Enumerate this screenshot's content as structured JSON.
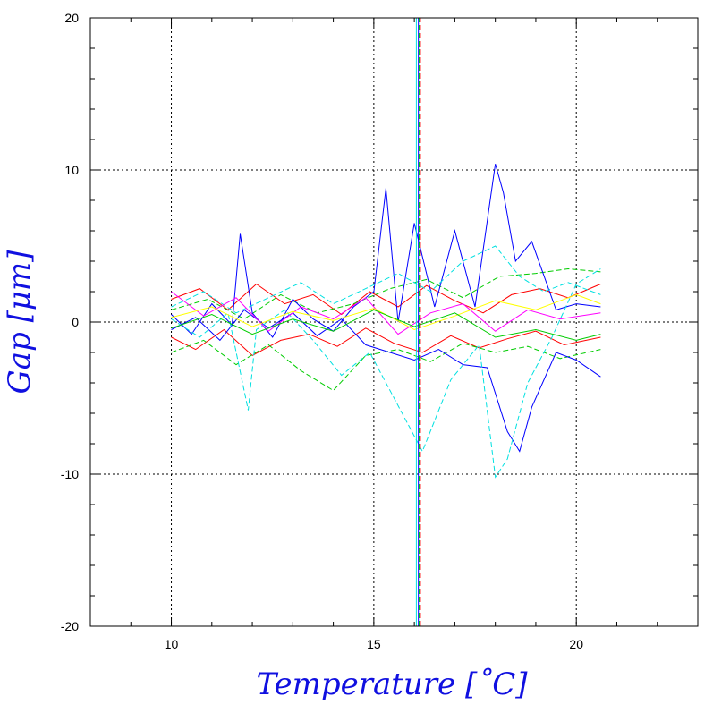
{
  "chart_data": {
    "type": "line",
    "title": "",
    "xlabel": "Temperature [˚C]",
    "ylabel": "Gap [μm]",
    "xlim": [
      8,
      23
    ],
    "ylim": [
      -20,
      20
    ],
    "x_ticks": [
      10,
      15,
      20
    ],
    "y_ticks": [
      -20,
      -10,
      0,
      10,
      20
    ],
    "x_tick_labels": [
      "10",
      "15",
      "20"
    ],
    "y_tick_labels": [
      "-20",
      "-10",
      "0",
      "10",
      "20"
    ],
    "grid": true,
    "grid_style": "dotted",
    "legend": "none",
    "series_colors": [
      "#ff0000",
      "#00cc00",
      "#0000ff",
      "#00e0e0",
      "#ff00ff",
      "#ffff00"
    ],
    "series": [
      {
        "color": "#ff0000",
        "dash": "solid",
        "x": [
          10.0,
          10.7,
          11.4,
          12.1,
          12.8,
          13.5,
          14.2,
          14.9,
          15.6,
          16.3,
          17.0,
          17.7,
          18.4,
          19.1,
          19.8,
          20.6
        ],
        "y": [
          1.5,
          2.2,
          0.8,
          2.5,
          1.2,
          1.8,
          0.5,
          2.0,
          1.0,
          2.4,
          1.4,
          0.6,
          1.8,
          2.2,
          1.6,
          2.5
        ]
      },
      {
        "color": "#ff0000",
        "dash": "solid",
        "x": [
          10.0,
          10.6,
          11.3,
          12.0,
          12.7,
          13.4,
          14.1,
          14.8,
          15.5,
          16.2,
          16.9,
          17.6,
          18.3,
          19.0,
          19.7,
          20.6
        ],
        "y": [
          -1.0,
          -1.8,
          -0.5,
          -2.2,
          -1.2,
          -0.8,
          -1.6,
          -0.4,
          -1.4,
          -2.0,
          -0.9,
          -1.7,
          -1.1,
          -0.6,
          -1.5,
          -1.0
        ]
      },
      {
        "color": "#00cc00",
        "dash": "dashed",
        "x": [
          10.0,
          10.8,
          11.6,
          12.4,
          13.2,
          14.0,
          14.8,
          15.6,
          16.4,
          17.2,
          18.0,
          18.8,
          19.6,
          20.6
        ],
        "y": [
          -2.0,
          -1.2,
          -2.8,
          -1.5,
          -3.2,
          -4.5,
          -2.2,
          -1.8,
          -2.6,
          -1.4,
          -2.0,
          -1.6,
          -2.4,
          -1.8
        ]
      },
      {
        "color": "#00cc00",
        "dash": "dashed",
        "x": [
          10.0,
          10.9,
          11.8,
          12.7,
          13.6,
          14.5,
          15.4,
          16.3,
          17.2,
          18.1,
          19.0,
          19.8,
          20.6
        ],
        "y": [
          0.8,
          1.5,
          0.2,
          1.8,
          0.6,
          1.2,
          2.2,
          2.8,
          1.6,
          3.0,
          3.2,
          3.5,
          3.3
        ]
      },
      {
        "color": "#0000ff",
        "dash": "solid",
        "x": [
          10.0,
          10.5,
          11.0,
          11.5,
          11.7,
          12.0,
          12.5,
          13.0,
          13.5,
          14.0,
          14.5,
          15.0,
          15.3,
          15.6,
          16.0,
          16.5,
          17.0,
          17.5,
          18.0,
          18.2,
          18.5,
          18.9,
          19.5,
          20.0,
          20.6
        ],
        "y": [
          0.5,
          -0.8,
          1.2,
          -0.2,
          5.8,
          0.6,
          -1.0,
          1.5,
          0.2,
          -0.6,
          1.0,
          2.0,
          8.8,
          0.0,
          6.5,
          1.0,
          6.0,
          1.0,
          10.4,
          8.5,
          4.0,
          5.3,
          0.8,
          1.2,
          1.0
        ]
      },
      {
        "color": "#0000ff",
        "dash": "solid",
        "x": [
          10.0,
          10.6,
          11.2,
          11.8,
          12.4,
          13.0,
          13.6,
          14.2,
          14.8,
          15.4,
          16.0,
          16.6,
          17.2,
          17.8,
          18.3,
          18.6,
          18.9,
          19.5,
          20.0,
          20.6
        ],
        "y": [
          -0.5,
          0.3,
          -1.2,
          0.8,
          -0.4,
          0.6,
          -0.9,
          0.2,
          -1.5,
          -2.0,
          -2.5,
          -1.8,
          -2.8,
          -3.0,
          -7.2,
          -8.5,
          -5.6,
          -2.0,
          -2.5,
          -3.6
        ]
      },
      {
        "color": "#00e0e0",
        "dash": "dashed",
        "x": [
          10.0,
          10.7,
          11.4,
          11.9,
          12.1,
          12.8,
          13.5,
          14.2,
          14.9,
          15.5,
          16.2,
          16.9,
          17.6,
          18.0,
          18.3,
          18.8,
          19.4,
          20.0,
          20.6
        ],
        "y": [
          0.2,
          -1.0,
          0.6,
          -5.8,
          -0.5,
          0.8,
          -1.2,
          -3.5,
          -2.0,
          -5.0,
          -8.5,
          -3.8,
          -1.5,
          -10.2,
          -9.0,
          -4.0,
          -1.0,
          2.5,
          3.5
        ]
      },
      {
        "color": "#00e0e0",
        "dash": "dashed",
        "x": [
          10.0,
          10.8,
          11.6,
          12.4,
          13.2,
          14.0,
          14.8,
          15.6,
          16.4,
          17.2,
          18.0,
          18.6,
          19.2,
          19.8,
          20.6
        ],
        "y": [
          1.0,
          2.0,
          0.6,
          1.6,
          2.6,
          1.2,
          2.2,
          3.2,
          2.0,
          4.0,
          5.0,
          3.0,
          2.0,
          2.6,
          1.8
        ]
      },
      {
        "color": "#ff00ff",
        "dash": "solid",
        "x": [
          10.0,
          10.8,
          11.6,
          12.4,
          13.2,
          14.0,
          14.8,
          15.6,
          16.4,
          17.2,
          18.0,
          18.8,
          19.6,
          20.6
        ],
        "y": [
          2.0,
          0.4,
          1.6,
          -0.6,
          1.0,
          0.2,
          1.6,
          -0.8,
          0.6,
          1.2,
          -0.6,
          0.8,
          0.2,
          0.6
        ]
      },
      {
        "color": "#ffff00",
        "dash": "solid",
        "x": [
          10.0,
          11.0,
          12.0,
          13.0,
          14.0,
          15.0,
          16.0,
          17.0,
          18.0,
          19.0,
          20.0,
          20.6
        ],
        "y": [
          0.3,
          1.0,
          -0.3,
          0.7,
          0.1,
          0.9,
          -0.5,
          0.4,
          1.4,
          0.8,
          1.8,
          1.2
        ]
      },
      {
        "color": "#00cc00",
        "dash": "solid",
        "x": [
          10.0,
          11.0,
          12.0,
          13.0,
          14.0,
          15.0,
          16.0,
          17.0,
          18.0,
          19.0,
          20.0,
          20.6
        ],
        "y": [
          -0.4,
          0.5,
          -0.8,
          0.2,
          -0.6,
          0.8,
          -0.3,
          0.6,
          -1.0,
          -0.5,
          -1.2,
          -0.8
        ]
      },
      {
        "color": "#0000ff",
        "dash": "solid",
        "x": [
          16.1,
          16.1
        ],
        "y": [
          -20,
          20
        ]
      },
      {
        "color": "#00e0e0",
        "dash": "solid",
        "x": [
          16.05,
          16.05
        ],
        "y": [
          -20,
          20
        ]
      },
      {
        "color": "#ff0000",
        "dash": "dashed",
        "x": [
          16.15,
          16.15
        ],
        "y": [
          -20,
          20
        ]
      },
      {
        "color": "#00cc00",
        "dash": "dashed",
        "x": [
          16.12,
          16.12
        ],
        "y": [
          -20,
          20
        ]
      }
    ]
  }
}
